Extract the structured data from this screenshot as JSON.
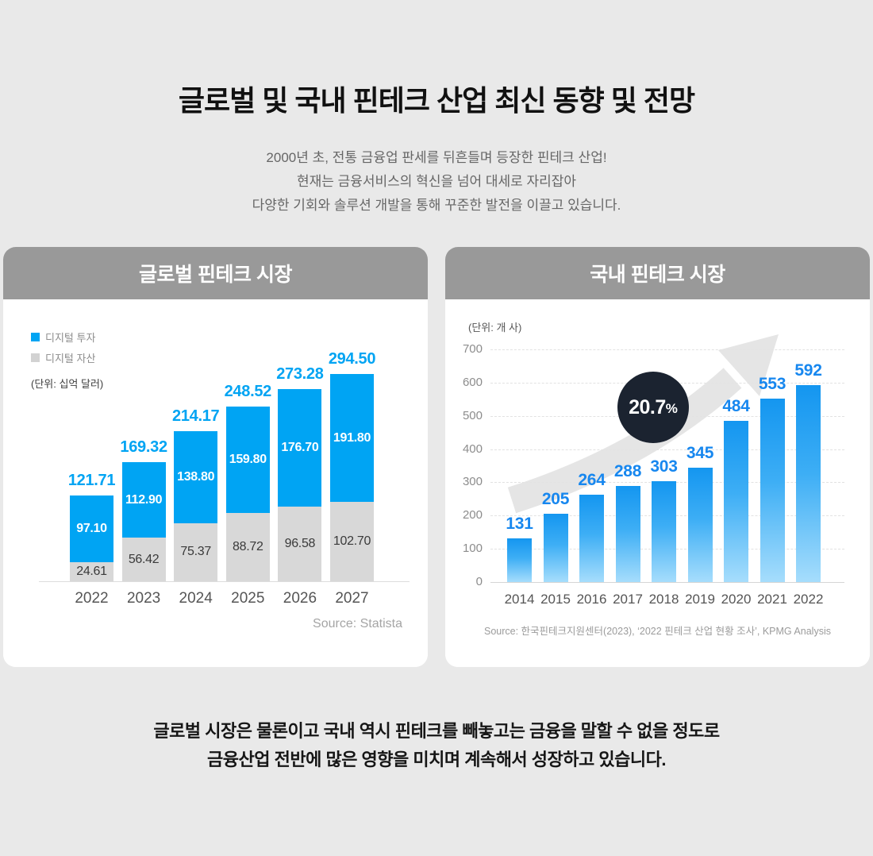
{
  "page": {
    "title": "글로벌 및 국내 핀테크 산업 최신 동향 및 전망",
    "subtitle_lines": [
      "2000년 초, 전통 금융업 판세를 뒤흔들며 등장한 핀테크 산업!",
      "현재는 금융서비스의 혁신을 넘어 대세로 자리잡아",
      "다양한 기회와 솔루션 개발을 통해 꾸준한 발전을 이끌고 있습니다."
    ],
    "footer_lines": [
      "글로벌 시장은 물론이고 국내 역시 핀테크를 빼놓고는 금융을 말할 수 없을 정도로",
      "금융산업 전반에 많은 영향을 미치며 계속해서 성장하고 있습니다."
    ]
  },
  "colors": {
    "page_background": "#e9e9e9",
    "card_header_gray": "#999999",
    "accent_blue": "#00a4f3",
    "bar_gray": "#d8d8d8",
    "domestic_label_blue": "#1787ef",
    "domestic_bar_gradient_top": "#1496f0",
    "domestic_bar_gradient_bottom": "#a6ddfc",
    "badge_dark": "#1b2330",
    "arrow_gray": "#e3e3e3"
  },
  "chart_data": [
    {
      "type": "bar",
      "subtype": "stacked",
      "title": "글로벌 핀테크 시장",
      "unit": "(단위: 십억 달러)",
      "categories": [
        "2022",
        "2023",
        "2024",
        "2025",
        "2026",
        "2027"
      ],
      "series": [
        {
          "name": "디지털 투자",
          "color": "#00a4f3",
          "values": [
            "97.10",
            "112.90",
            "138.80",
            "159.80",
            "176.70",
            "191.80"
          ]
        },
        {
          "name": "디지털 자산",
          "color": "#d8d8d8",
          "values": [
            "24.61",
            "56.42",
            "75.37",
            "88.72",
            "96.58",
            "102.70"
          ]
        }
      ],
      "totals": [
        "121.71",
        "169.32",
        "214.17",
        "248.52",
        "273.28",
        "294.50"
      ],
      "legend_position": "top-left",
      "grid": false,
      "source": "Source: Statista"
    },
    {
      "type": "bar",
      "title": "국내 핀테크 시장",
      "unit": "(단위: 개 사)",
      "categories": [
        "2014",
        "2015",
        "2016",
        "2017",
        "2018",
        "2019",
        "2020",
        "2021",
        "2022"
      ],
      "values": [
        131,
        205,
        264,
        288,
        303,
        345,
        484,
        553,
        592
      ],
      "ylim": [
        0,
        700
      ],
      "yticks": [
        0,
        100,
        200,
        300,
        400,
        500,
        600,
        700
      ],
      "grid": true,
      "badge": {
        "value": "20.7",
        "suffix": "%"
      },
      "source": "Source: 한국핀테크지원센터(2023), ‘2022 핀테크 산업 현황 조사’, KPMG Analysis"
    }
  ]
}
